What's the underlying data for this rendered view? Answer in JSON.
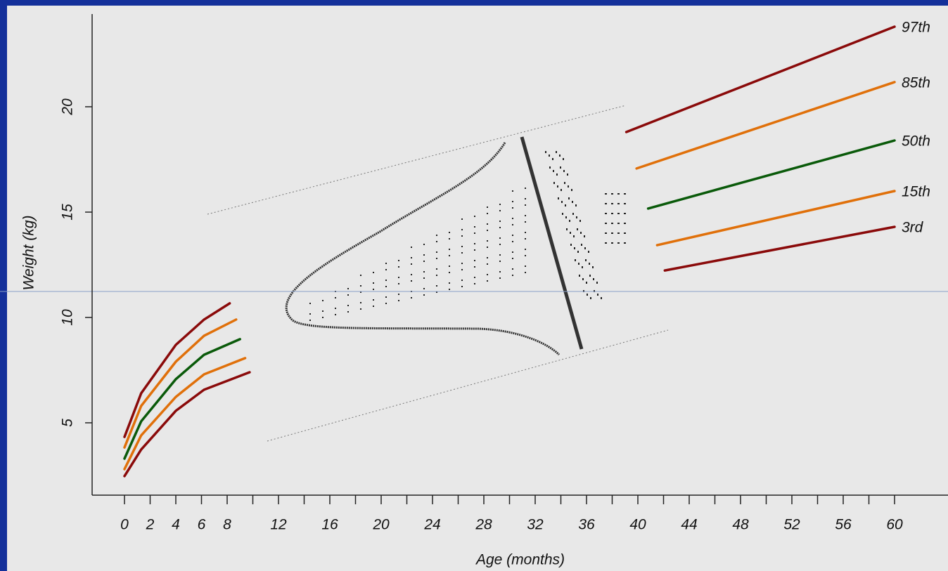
{
  "chart_data": {
    "type": "line",
    "x_label": "Age (months)",
    "y_label": "Weight (kg)",
    "xlim": [
      -2.5,
      64.2
    ],
    "ylim": [
      1.6,
      24.4
    ],
    "xticks": [
      0,
      2,
      4,
      6,
      8,
      12,
      16,
      20,
      24,
      28,
      32,
      36,
      40,
      44,
      48,
      52,
      56,
      60
    ],
    "xminorticks": [
      10,
      14,
      18,
      22,
      26,
      30,
      34,
      38,
      42,
      46,
      50,
      54,
      58
    ],
    "yticks": [
      5,
      10,
      15,
      20
    ],
    "series": [
      {
        "name": "97th",
        "color": "#8a0a0a",
        "x": [
          0,
          1.3,
          4,
          6.2,
          8.2,
          25,
          39.1,
          60
        ],
        "values": [
          4.33,
          6.4,
          8.7,
          9.9,
          10.67,
          null,
          18.8,
          23.8
        ]
      },
      {
        "name": "85th",
        "color": "#e0700a",
        "x": [
          0,
          1.3,
          4,
          6.2,
          8.7,
          25,
          39.9,
          60
        ],
        "values": [
          3.83,
          5.8,
          7.9,
          9.13,
          9.9,
          null,
          17.07,
          21.17
        ]
      },
      {
        "name": "50th",
        "color": "#0a5a0a",
        "x": [
          0,
          1.3,
          4,
          6.2,
          9.0,
          25,
          40.8,
          60
        ],
        "values": [
          3.3,
          5.07,
          7.07,
          8.23,
          8.97,
          null,
          15.17,
          18.4
        ]
      },
      {
        "name": "15th",
        "color": "#e0700a",
        "x": [
          0,
          1.3,
          4,
          6.2,
          9.4,
          25,
          41.5,
          60
        ],
        "values": [
          2.8,
          4.4,
          6.23,
          7.3,
          8.07,
          null,
          13.43,
          16.0
        ]
      },
      {
        "name": "3rd",
        "color": "#8a0a0a",
        "x": [
          0,
          1.3,
          4,
          6.2,
          9.75,
          25,
          42.1,
          60
        ],
        "values": [
          2.47,
          3.73,
          5.57,
          6.57,
          7.4,
          null,
          12.23,
          14.3
        ]
      }
    ]
  }
}
